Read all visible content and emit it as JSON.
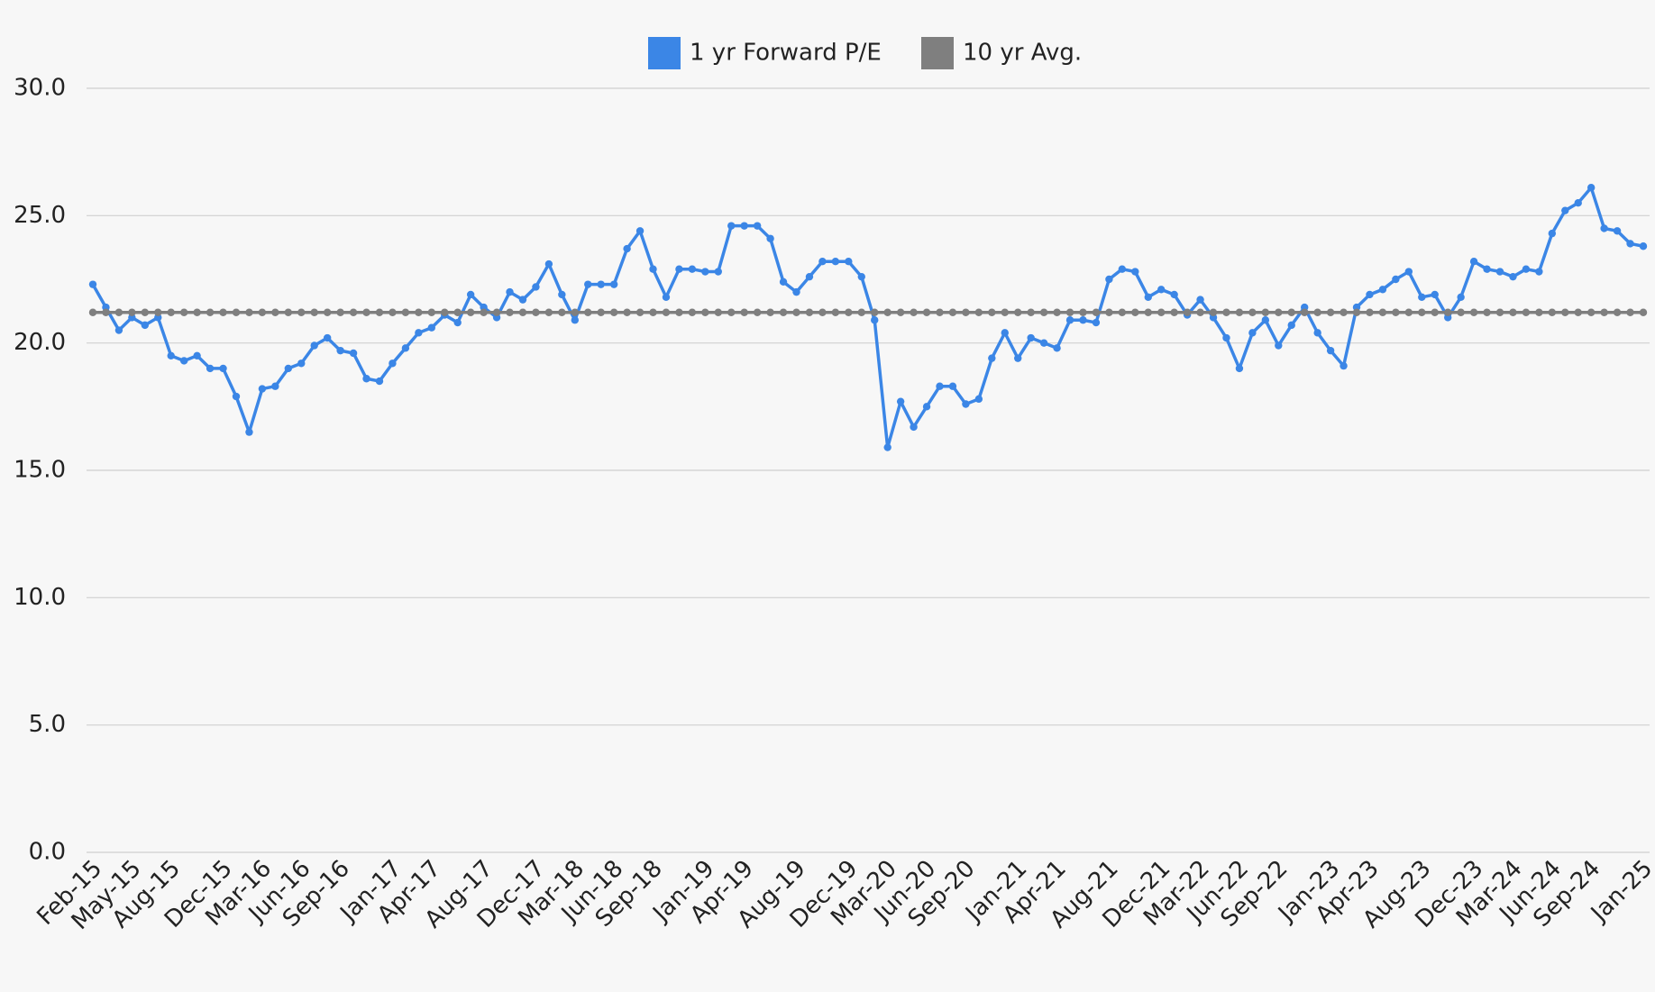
{
  "chart_data": {
    "type": "line",
    "categories": [
      "Feb-15",
      null,
      null,
      "May-15",
      null,
      null,
      "Aug-15",
      null,
      null,
      null,
      "Dec-15",
      null,
      null,
      "Mar-16",
      null,
      null,
      "Jun-16",
      null,
      null,
      "Sep-16",
      null,
      null,
      null,
      "Jan-17",
      null,
      null,
      "Apr-17",
      null,
      null,
      null,
      "Aug-17",
      null,
      null,
      null,
      "Dec-17",
      null,
      null,
      "Mar-18",
      null,
      null,
      "Jun-18",
      null,
      null,
      "Sep-18",
      null,
      null,
      null,
      "Jan-19",
      null,
      null,
      "Apr-19",
      null,
      null,
      null,
      "Aug-19",
      null,
      null,
      null,
      "Dec-19",
      null,
      null,
      "Mar-20",
      null,
      null,
      "Jun-20",
      null,
      null,
      "Sep-20",
      null,
      null,
      null,
      "Jan-21",
      null,
      null,
      "Apr-21",
      null,
      null,
      null,
      "Aug-21",
      null,
      null,
      null,
      "Dec-21",
      null,
      null,
      "Mar-22",
      null,
      null,
      "Jun-22",
      null,
      null,
      "Sep-22",
      null,
      null,
      null,
      "Jan-23",
      null,
      null,
      "Apr-23",
      null,
      null,
      null,
      "Aug-23",
      null,
      null,
      null,
      "Dec-23",
      null,
      null,
      "Mar-24",
      null,
      null,
      "Jun-24",
      null,
      null,
      "Sep-24",
      null,
      null,
      null,
      "Jan-25"
    ],
    "series": [
      {
        "name": "1 yr Forward P/E",
        "color": "#3b86e6",
        "values": [
          22.3,
          21.4,
          20.5,
          21.0,
          20.7,
          21.0,
          19.5,
          19.3,
          19.5,
          19.0,
          19.0,
          17.9,
          16.5,
          18.2,
          18.3,
          19.0,
          19.2,
          19.9,
          20.2,
          19.7,
          19.6,
          18.6,
          18.5,
          19.2,
          19.8,
          20.4,
          20.6,
          21.1,
          20.8,
          21.9,
          21.4,
          21.0,
          22.0,
          21.7,
          22.2,
          23.1,
          21.9,
          20.9,
          22.3,
          22.3,
          22.3,
          23.7,
          24.4,
          22.9,
          21.8,
          22.9,
          22.9,
          22.8,
          22.8,
          24.6,
          24.6,
          24.6,
          24.1,
          22.4,
          22.0,
          22.6,
          23.2,
          23.2,
          23.2,
          22.6,
          20.9,
          15.9,
          17.7,
          16.7,
          17.5,
          18.3,
          18.3,
          17.6,
          17.8,
          19.4,
          20.4,
          19.4,
          20.2,
          20.0,
          19.8,
          20.9,
          20.9,
          20.8,
          22.5,
          22.9,
          22.8,
          21.8,
          22.1,
          21.9,
          21.1,
          21.7,
          21.0,
          20.2,
          19.0,
          20.4,
          20.9,
          19.9,
          20.7,
          21.4,
          20.4,
          19.7,
          19.1,
          21.4,
          21.9,
          22.1,
          22.5,
          22.8,
          21.8,
          21.9,
          21.0,
          21.8,
          23.2,
          22.9,
          22.8,
          22.6,
          22.9,
          22.8,
          24.3,
          25.2,
          25.5,
          26.1,
          24.5,
          24.4,
          23.9,
          23.8
        ]
      },
      {
        "name": "10 yr Avg.",
        "color": "#7f7f7f",
        "values": [
          21.2,
          21.2,
          21.2,
          21.2,
          21.2,
          21.2,
          21.2,
          21.2,
          21.2,
          21.2,
          21.2,
          21.2,
          21.2,
          21.2,
          21.2,
          21.2,
          21.2,
          21.2,
          21.2,
          21.2,
          21.2,
          21.2,
          21.2,
          21.2,
          21.2,
          21.2,
          21.2,
          21.2,
          21.2,
          21.2,
          21.2,
          21.2,
          21.2,
          21.2,
          21.2,
          21.2,
          21.2,
          21.2,
          21.2,
          21.2,
          21.2,
          21.2,
          21.2,
          21.2,
          21.2,
          21.2,
          21.2,
          21.2,
          21.2,
          21.2,
          21.2,
          21.2,
          21.2,
          21.2,
          21.2,
          21.2,
          21.2,
          21.2,
          21.2,
          21.2,
          21.2,
          21.2,
          21.2,
          21.2,
          21.2,
          21.2,
          21.2,
          21.2,
          21.2,
          21.2,
          21.2,
          21.2,
          21.2,
          21.2,
          21.2,
          21.2,
          21.2,
          21.2,
          21.2,
          21.2,
          21.2,
          21.2,
          21.2,
          21.2,
          21.2,
          21.2,
          21.2,
          21.2,
          21.2,
          21.2,
          21.2,
          21.2,
          21.2,
          21.2,
          21.2,
          21.2,
          21.2,
          21.2,
          21.2,
          21.2,
          21.2,
          21.2,
          21.2,
          21.2,
          21.2,
          21.2,
          21.2,
          21.2,
          21.2,
          21.2,
          21.2,
          21.2,
          21.2,
          21.2,
          21.2,
          21.2,
          21.2,
          21.2,
          21.2,
          21.2
        ]
      }
    ],
    "ylim": [
      0,
      30
    ],
    "yticks": [
      {
        "value": 0,
        "label": "0.0"
      },
      {
        "value": 5,
        "label": "5.0"
      },
      {
        "value": 10,
        "label": "10.0"
      },
      {
        "value": 15,
        "label": "15.0"
      },
      {
        "value": 20,
        "label": "20.0"
      },
      {
        "value": 25,
        "label": "25.0"
      },
      {
        "value": 30,
        "label": "30.0"
      }
    ],
    "grid": true,
    "legend": "top"
  }
}
